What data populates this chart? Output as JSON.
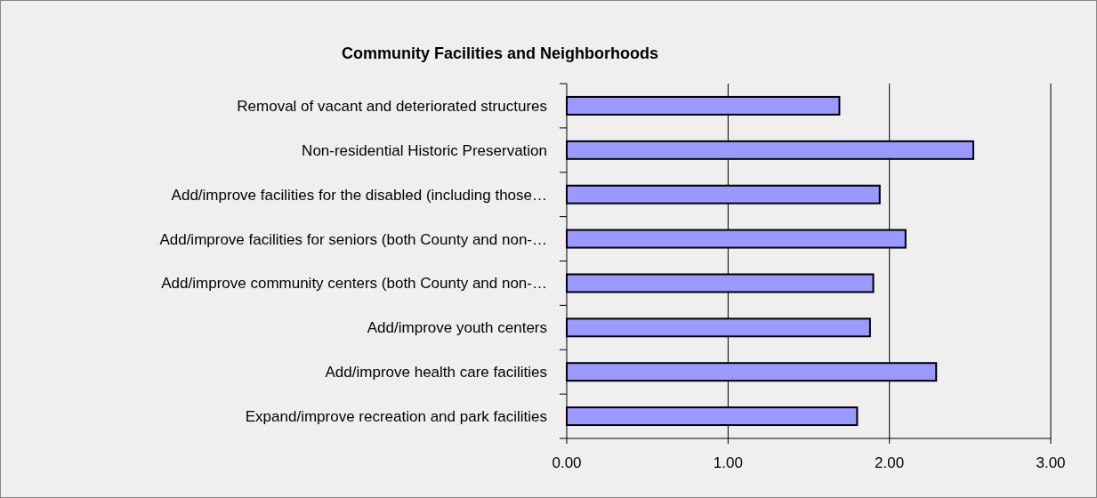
{
  "chart_data": {
    "type": "bar",
    "orientation": "horizontal",
    "title": "Community Facilities and Neighborhoods",
    "categories": [
      "Removal of vacant and deteriorated structures",
      "Non-residential Historic Preservation",
      "Add/improve facilities for the disabled (including those…",
      "Add/improve facilities for seniors (both County and non-…",
      "Add/improve community centers (both County and non-…",
      "Add/improve youth centers",
      "Add/improve health care facilities",
      "Expand/improve recreation and park facilities"
    ],
    "values": [
      1.69,
      2.52,
      1.94,
      2.1,
      1.9,
      1.88,
      2.29,
      1.8
    ],
    "color": "#9999ff",
    "xlim": [
      0,
      3
    ],
    "xticks": [
      {
        "value": 0,
        "label": "0.00"
      },
      {
        "value": 1,
        "label": "1.00"
      },
      {
        "value": 2,
        "label": "2.00"
      },
      {
        "value": 3,
        "label": "3.00"
      }
    ],
    "grid": "x"
  }
}
